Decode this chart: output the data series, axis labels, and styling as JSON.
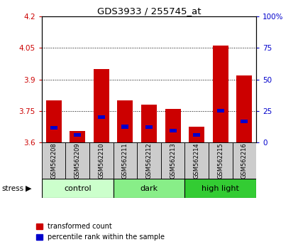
{
  "title": "GDS3933 / 255745_at",
  "samples": [
    "GSM562208",
    "GSM562209",
    "GSM562210",
    "GSM562211",
    "GSM562212",
    "GSM562213",
    "GSM562214",
    "GSM562215",
    "GSM562216"
  ],
  "red_values": [
    3.8,
    3.655,
    3.95,
    3.8,
    3.78,
    3.76,
    3.675,
    4.06,
    3.92
  ],
  "blue_values": [
    3.67,
    3.635,
    3.72,
    3.675,
    3.672,
    3.655,
    3.635,
    3.75,
    3.7
  ],
  "base": 3.6,
  "ylim_left": [
    3.6,
    4.2
  ],
  "ylim_right": [
    0,
    100
  ],
  "yticks_left": [
    3.6,
    3.75,
    3.9,
    4.05,
    4.2
  ],
  "yticks_right": [
    0,
    25,
    50,
    75,
    100
  ],
  "groups": [
    {
      "label": "control",
      "start": 0,
      "end": 3,
      "color": "#ccffcc"
    },
    {
      "label": "dark",
      "start": 3,
      "end": 6,
      "color": "#88ee88"
    },
    {
      "label": "high light",
      "start": 6,
      "end": 9,
      "color": "#33cc33"
    }
  ],
  "stress_label": "stress",
  "bar_width": 0.65,
  "red_color": "#cc0000",
  "blue_color": "#0000cc",
  "left_axis_color": "#cc0000",
  "right_axis_color": "#0000cc",
  "label_bg_color": "#cccccc",
  "blue_bar_height": 0.018
}
